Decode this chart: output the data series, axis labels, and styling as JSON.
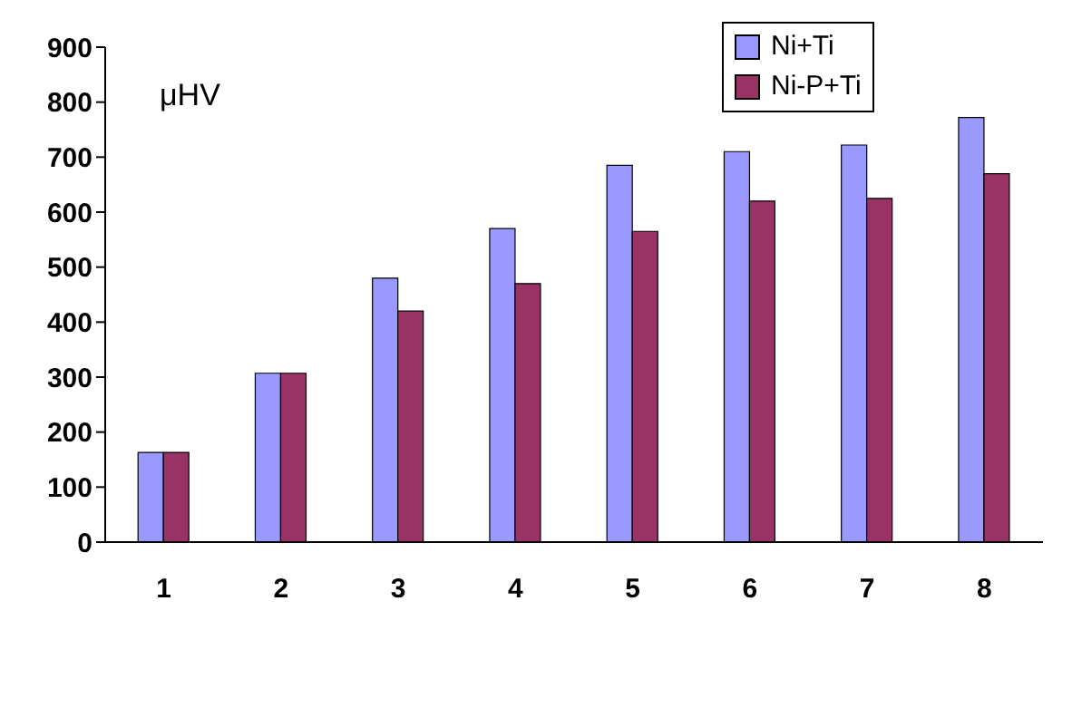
{
  "chart_data": {
    "type": "bar",
    "categories": [
      "1",
      "2",
      "3",
      "4",
      "5",
      "6",
      "7",
      "8"
    ],
    "series": [
      {
        "name": "Ni+Ti",
        "color": "#9999ff",
        "values": [
          163,
          307,
          480,
          570,
          685,
          710,
          722,
          772
        ]
      },
      {
        "name": "Ni-P+Ti",
        "color": "#993366",
        "values": [
          163,
          307,
          420,
          470,
          565,
          620,
          625,
          670
        ]
      }
    ],
    "ylim": [
      0,
      900
    ],
    "yticks": [
      0,
      100,
      200,
      300,
      400,
      500,
      600,
      700,
      800,
      900
    ],
    "annotations": [
      "μHV"
    ],
    "legend": "top right",
    "grid": false
  }
}
